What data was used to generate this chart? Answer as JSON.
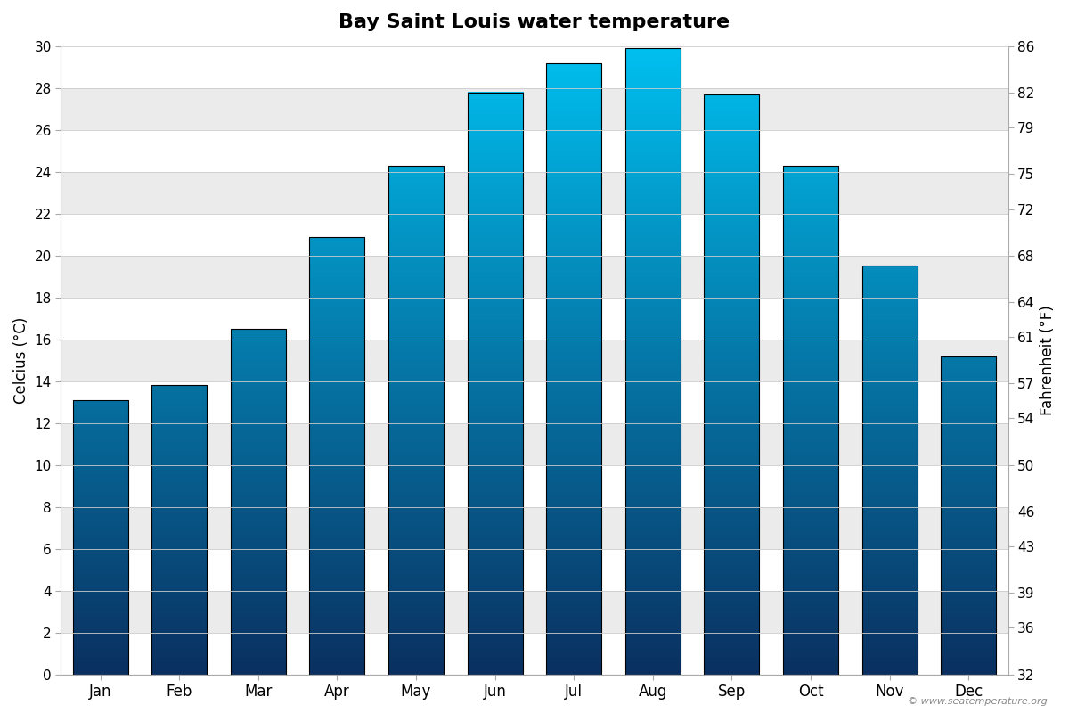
{
  "title": "Bay Saint Louis water temperature",
  "months": [
    "Jan",
    "Feb",
    "Mar",
    "Apr",
    "May",
    "Jun",
    "Jul",
    "Aug",
    "Sep",
    "Oct",
    "Nov",
    "Dec"
  ],
  "temps_c": [
    13.1,
    13.8,
    16.5,
    20.9,
    24.3,
    27.8,
    29.2,
    29.9,
    27.7,
    24.3,
    19.5,
    15.2
  ],
  "ylabel_left": "Celcius (°C)",
  "ylabel_right": "Fahrenheit (°F)",
  "ylim_c": [
    0,
    30
  ],
  "yticks_c": [
    0,
    2,
    4,
    6,
    8,
    10,
    12,
    14,
    16,
    18,
    20,
    22,
    24,
    26,
    28,
    30
  ],
  "yticks_f": [
    32,
    36,
    39,
    43,
    46,
    50,
    54,
    57,
    61,
    64,
    68,
    72,
    75,
    79,
    82,
    86
  ],
  "color_bottom": "#0a3060",
  "color_top": "#00c0f0",
  "background_color": "#ffffff",
  "plot_bg_color": "#ffffff",
  "band_color_light": "#ffffff",
  "band_color_dark": "#ebebeb",
  "watermark": "© www.seatemperature.org",
  "title_fontsize": 16,
  "bar_width": 0.7
}
